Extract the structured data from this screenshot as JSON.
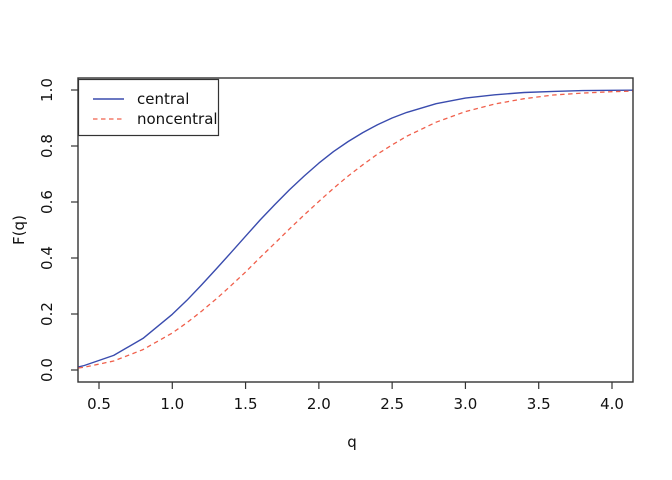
{
  "window": {
    "background": "#ffffff"
  },
  "chart_data": {
    "type": "line",
    "title": "",
    "xlabel": "q",
    "ylabel": "F(q)",
    "xlim": [
      0.36,
      4.14
    ],
    "ylim": [
      0.0,
      1.0
    ],
    "grid": false,
    "legend_position": "topleft",
    "frame_color": "#333333",
    "x_tick_values": [
      0.5,
      1.0,
      1.5,
      2.0,
      2.5,
      3.0,
      3.5,
      4.0
    ],
    "x_tick_labels": [
      "0.5",
      "1.0",
      "1.5",
      "2.0",
      "2.5",
      "3.0",
      "3.5",
      "4.0"
    ],
    "y_tick_values": [
      0.0,
      0.2,
      0.4,
      0.6,
      0.8,
      1.0
    ],
    "y_tick_labels": [
      "0.0",
      "0.2",
      "0.4",
      "0.6",
      "0.8",
      "1.0"
    ],
    "x": [
      0.36,
      0.4,
      0.6,
      0.8,
      1.0,
      1.1,
      1.2,
      1.3,
      1.4,
      1.5,
      1.6,
      1.7,
      1.8,
      1.9,
      2.0,
      2.1,
      2.2,
      2.3,
      2.4,
      2.5,
      2.6,
      2.8,
      3.0,
      3.2,
      3.4,
      3.6,
      3.8,
      4.0,
      4.14
    ],
    "series": [
      {
        "name": "central",
        "color": "#3a4cae",
        "style": "solid",
        "values": [
          0.011,
          0.016,
          0.052,
          0.113,
          0.199,
          0.249,
          0.304,
          0.361,
          0.419,
          0.478,
          0.536,
          0.591,
          0.644,
          0.693,
          0.739,
          0.78,
          0.816,
          0.848,
          0.876,
          0.9,
          0.92,
          0.951,
          0.971,
          0.983,
          0.991,
          0.995,
          0.998,
          0.999,
          0.9993
        ]
      },
      {
        "name": "noncentral",
        "color": "#f0604c",
        "style": "dashed",
        "values": [
          0.007,
          0.01,
          0.032,
          0.073,
          0.132,
          0.169,
          0.21,
          0.254,
          0.301,
          0.35,
          0.402,
          0.453,
          0.504,
          0.554,
          0.602,
          0.649,
          0.693,
          0.733,
          0.771,
          0.804,
          0.835,
          0.885,
          0.923,
          0.95,
          0.969,
          0.982,
          0.989,
          0.994,
          0.996
        ]
      }
    ]
  }
}
